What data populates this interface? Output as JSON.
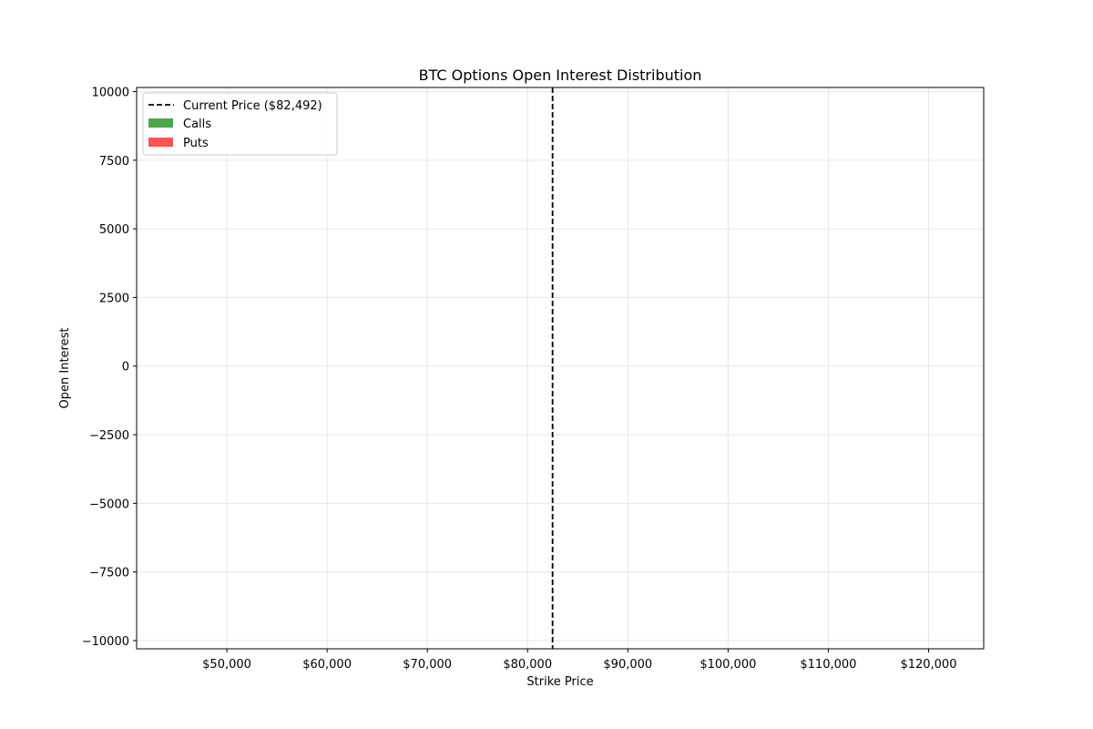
{
  "chart_data": {
    "type": "bar",
    "title": "BTC Options Open Interest Distribution",
    "xlabel": "Strike Price",
    "ylabel": "Open Interest",
    "xlim": [
      41000,
      125500
    ],
    "ylim": [
      -10300,
      10150
    ],
    "xticks": [
      50000,
      60000,
      70000,
      80000,
      90000,
      100000,
      110000,
      120000
    ],
    "xtick_labels": [
      "$50,000",
      "$60,000",
      "$70,000",
      "$80,000",
      "$90,000",
      "$100,000",
      "$110,000",
      "$120,000"
    ],
    "yticks": [
      10000,
      7500,
      5000,
      2500,
      0,
      -2500,
      -5000,
      -7500,
      -10000
    ],
    "ytick_labels": [
      "10000",
      "7500",
      "5000",
      "2500",
      "0",
      "−2500",
      "−5000",
      "−7500",
      "−10000"
    ],
    "grid": true,
    "legend_position": "top-left",
    "current_price": {
      "value": 82492,
      "label": "Current Price ($82,492)",
      "color": "#000000",
      "style": "dashed"
    },
    "series": [
      {
        "name": "Calls",
        "color": "#4ca64c",
        "values": []
      },
      {
        "name": "Puts",
        "color": "#ff5252",
        "values": []
      }
    ]
  }
}
